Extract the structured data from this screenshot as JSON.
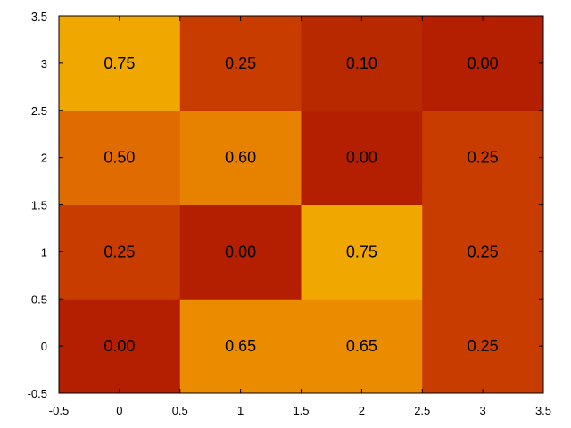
{
  "chart_data": {
    "type": "heatmap",
    "title": "",
    "xlabel": "",
    "ylabel": "",
    "xlim": [
      -0.5,
      3.5
    ],
    "ylim": [
      -0.5,
      3.5
    ],
    "grid": false,
    "x_ticks": [
      "-0.5",
      "0",
      "0.5",
      "1",
      "1.5",
      "2",
      "2.5",
      "3",
      "3.5"
    ],
    "y_ticks": [
      "-0.5",
      "0",
      "0.5",
      "1",
      "1.5",
      "2",
      "2.5",
      "3",
      "3.5"
    ],
    "x": [
      0,
      1,
      2,
      3
    ],
    "y": [
      0,
      1,
      2,
      3
    ],
    "values": [
      [
        0.0,
        0.65,
        0.65,
        0.25
      ],
      [
        0.25,
        0.0,
        0.75,
        0.25
      ],
      [
        0.5,
        0.6,
        0.0,
        0.25
      ],
      [
        0.75,
        0.25,
        0.1,
        0.0
      ]
    ],
    "labels": [
      [
        "0.00",
        "0.65",
        "0.65",
        "0.25"
      ],
      [
        "0.25",
        "0.00",
        "0.75",
        "0.25"
      ],
      [
        "0.50",
        "0.60",
        "0.00",
        "0.25"
      ],
      [
        "0.75",
        "0.25",
        "0.10",
        "0.00"
      ]
    ],
    "colormap": {
      "0.00": "#b31f00",
      "0.10": "#b92900",
      "0.25": "#c83c00",
      "0.50": "#e06b00",
      "0.60": "#e78200",
      "0.65": "#eb8c00",
      "0.75": "#f0a800"
    }
  }
}
